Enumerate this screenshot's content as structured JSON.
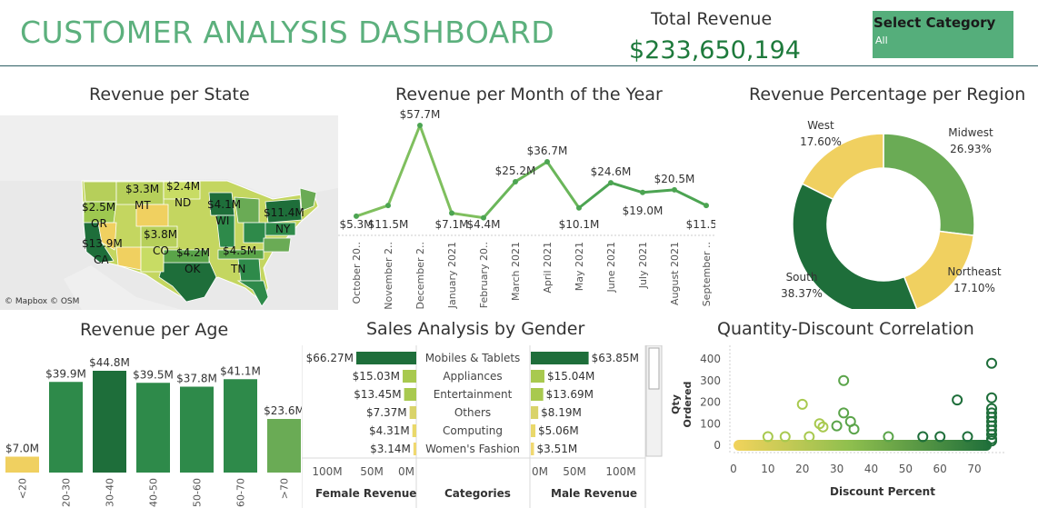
{
  "header": {
    "title": "CUSTOMER ANALYSIS DASHBOARD",
    "total_revenue_label": "Total Revenue",
    "total_revenue_value": "$233,650,194",
    "select_category_label": "Select Category",
    "select_category_value": "All"
  },
  "map": {
    "title": "Revenue per State",
    "attribution": "© Mapbox © OSM",
    "labels": [
      {
        "value": "$2.5M",
        "state": "OR"
      },
      {
        "value": "$3.3M",
        "state": "MT"
      },
      {
        "value": "$2.4M",
        "state": "ND"
      },
      {
        "value": "$4.1M",
        "state": "WI"
      },
      {
        "value": "$11.4M",
        "state": "NY"
      },
      {
        "value": "$13.9M",
        "state": "CA"
      },
      {
        "value": "$3.8M",
        "state": "CO"
      },
      {
        "value": "$4.2M",
        "state": "OK"
      },
      {
        "value": "$4.5M",
        "state": "TN"
      }
    ]
  },
  "month_chart": {
    "title": "Revenue per Month of the Year",
    "chart_data": {
      "type": "line",
      "x": [
        "October 20..",
        "November 2..",
        "December 2..",
        "January 2021",
        "February 20..",
        "March 2021",
        "April 2021",
        "May 2021",
        "June 2021",
        "July 2021",
        "August 2021",
        "September .."
      ],
      "values": [
        5.3,
        11.5,
        57.7,
        7.1,
        4.4,
        25.2,
        36.7,
        10.1,
        24.6,
        19.0,
        20.5,
        11.5
      ],
      "labels": [
        "$5.3M",
        "$11.5M",
        "$57.7M",
        "$7.1M",
        "$4.4M",
        "$25.2M",
        "$36.7M",
        "$10.1M",
        "$24.6M",
        "$19.0M",
        "$20.5M",
        "$11.5M"
      ]
    }
  },
  "region_chart": {
    "title": "Revenue Percentage per Region",
    "chart_data": {
      "type": "pie",
      "categories": [
        "Midwest",
        "Northeast",
        "South",
        "West"
      ],
      "values": [
        26.93,
        17.1,
        38.37,
        17.6
      ],
      "labels": [
        "26.93%",
        "17.10%",
        "38.37%",
        "17.60%"
      ],
      "colors": [
        "#6aab55",
        "#f0d060",
        "#1e6e3a",
        "#f0d060"
      ]
    }
  },
  "age_chart": {
    "title": "Revenue per Age",
    "chart_data": {
      "type": "bar",
      "categories": [
        "<20",
        "20-30",
        "30-40",
        "40-50",
        "50-60",
        "60-70",
        ">70"
      ],
      "values": [
        7.0,
        39.9,
        44.8,
        39.5,
        37.8,
        41.1,
        23.6
      ],
      "labels": [
        "$7.0M",
        "$39.9M",
        "$44.8M",
        "$39.5M",
        "$37.8M",
        "$41.1M",
        "$23.6M"
      ],
      "colors": [
        "#f0d060",
        "#2e8a4a",
        "#1e6e3a",
        "#2e8a4a",
        "#2e8a4a",
        "#2e8a4a",
        "#6aab55"
      ]
    }
  },
  "gender_chart": {
    "title": "Sales Analysis by Gender",
    "female_axis_label": "Female Revenue",
    "category_axis_label": "Categories",
    "male_axis_label": "Male Revenue",
    "female_ticks": [
      "100M",
      "50M",
      "0M"
    ],
    "male_ticks": [
      "0M",
      "50M",
      "100M"
    ],
    "chart_data": {
      "type": "bar",
      "categories": [
        "Mobiles & Tablets",
        "Appliances",
        "Entertainment",
        "Others",
        "Computing",
        "Women's Fashion"
      ],
      "series": [
        {
          "name": "Female Revenue",
          "values": [
            66.27,
            15.03,
            13.45,
            7.37,
            4.31,
            3.14
          ],
          "labels": [
            "$66.27M",
            "$15.03M",
            "$13.45M",
            "$7.37M",
            "$4.31M",
            "$3.14M"
          ]
        },
        {
          "name": "Male Revenue",
          "values": [
            63.85,
            15.04,
            13.69,
            8.19,
            5.06,
            3.51
          ],
          "labels": [
            "$63.85M",
            "$15.04M",
            "$13.69M",
            "$8.19M",
            "$5.06M",
            "$3.51M"
          ]
        }
      ]
    }
  },
  "scatter_chart": {
    "title": "Quantity-Discount Correlation",
    "xlabel": "Discount Percent",
    "ylabel": "Qty Ordered",
    "x_ticks": [
      "0",
      "10",
      "20",
      "30",
      "40",
      "50",
      "60",
      "70"
    ],
    "y_ticks": [
      "400",
      "300",
      "200",
      "100",
      "0"
    ],
    "chart_data": {
      "type": "scatter",
      "xlim": [
        0,
        75
      ],
      "ylim": [
        0,
        400
      ],
      "points": [
        [
          20,
          190
        ],
        [
          32,
          300
        ],
        [
          32,
          150
        ],
        [
          25,
          100
        ],
        [
          26,
          85
        ],
        [
          30,
          90
        ],
        [
          34,
          110
        ],
        [
          35,
          75
        ],
        [
          65,
          210
        ],
        [
          75,
          380
        ],
        [
          75,
          220
        ],
        [
          75,
          170
        ],
        [
          75,
          150
        ],
        [
          75,
          130
        ],
        [
          75,
          110
        ],
        [
          75,
          90
        ],
        [
          75,
          70
        ],
        [
          75,
          50
        ],
        [
          75,
          30
        ],
        [
          75,
          20
        ],
        [
          22,
          40
        ],
        [
          15,
          40
        ],
        [
          10,
          40
        ],
        [
          45,
          40
        ],
        [
          55,
          40
        ],
        [
          60,
          40
        ],
        [
          68,
          40
        ]
      ]
    }
  }
}
